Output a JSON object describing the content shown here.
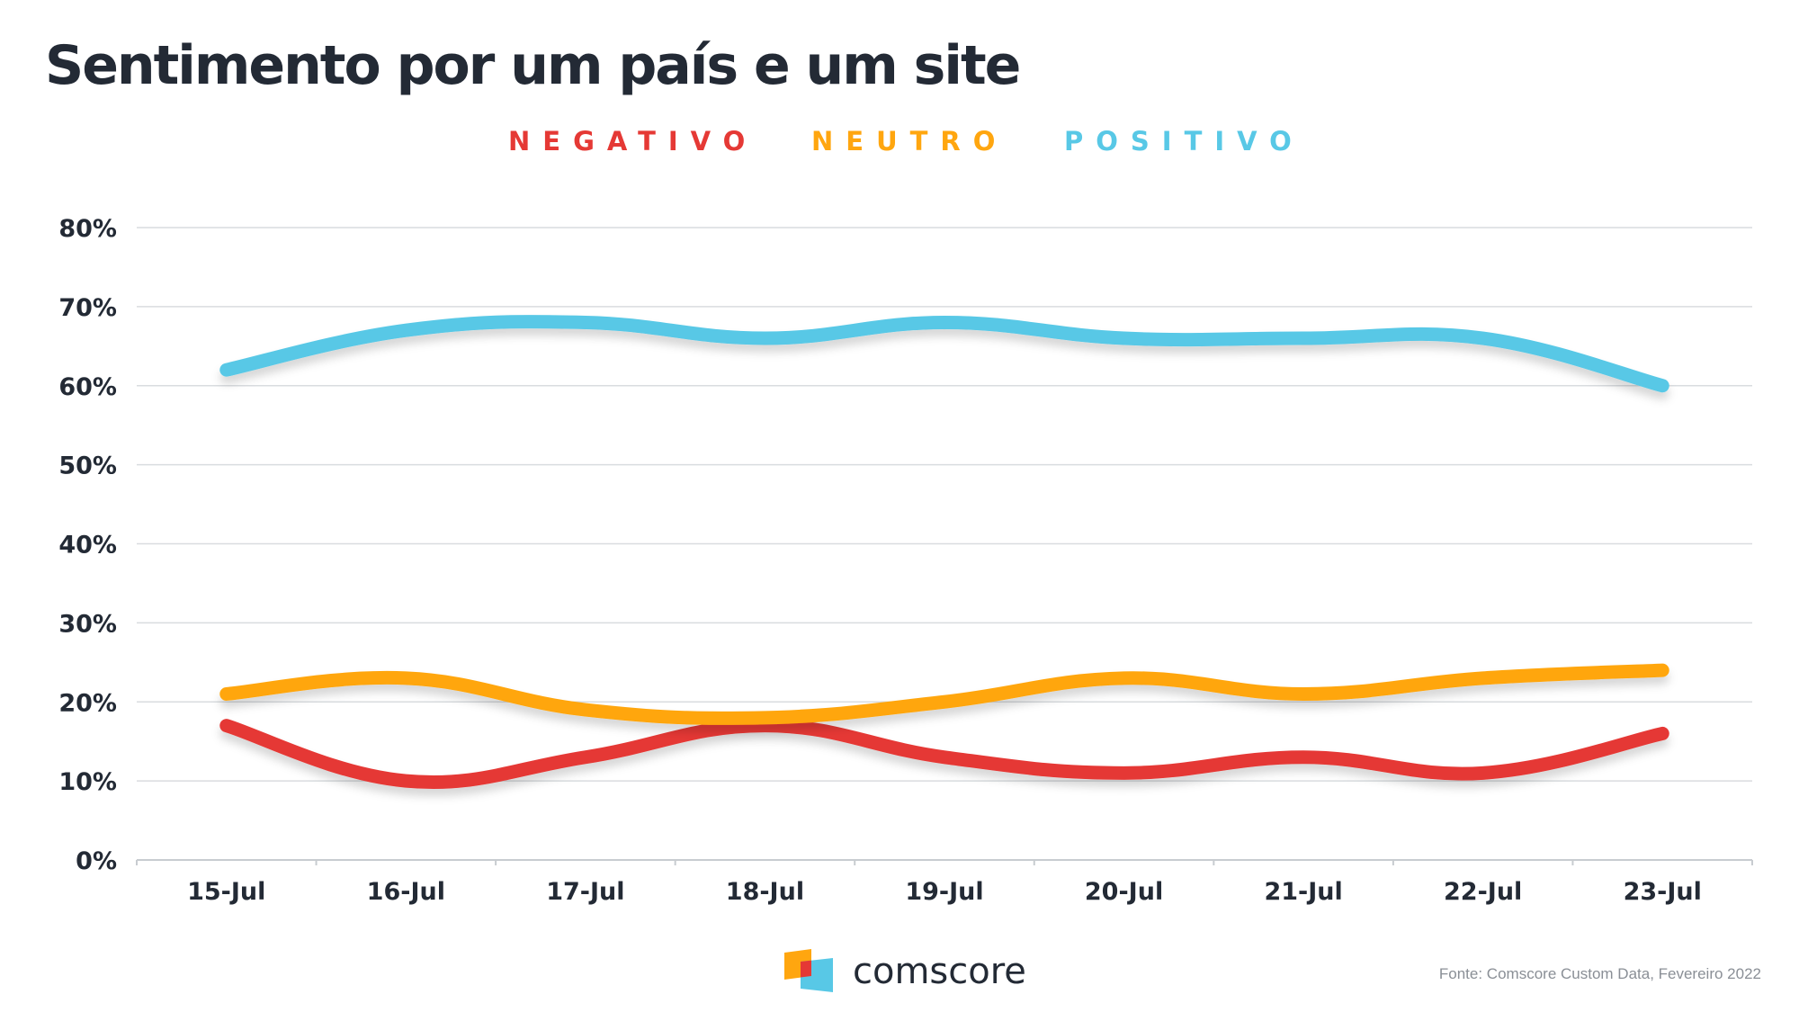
{
  "title": "Sentimento por um país e um site",
  "source": "Fonte: Comscore Custom Data, Fevereiro 2022",
  "logo": {
    "text": "comscore",
    "icon": "comscore-logo-icon"
  },
  "colors": {
    "negativo": "#e53935",
    "neutro": "#ffa60f",
    "positivo": "#58c8e6",
    "text": "#232a35",
    "grid": "#d9dcdf"
  },
  "chart_data": {
    "type": "line",
    "title": "Sentimento por um país e um site",
    "xlabel": "",
    "ylabel": "",
    "categories": [
      "15-Jul",
      "16-Jul",
      "17-Jul",
      "18-Jul",
      "19-Jul",
      "20-Jul",
      "21-Jul",
      "22-Jul",
      "23-Jul"
    ],
    "ylim": [
      0,
      80
    ],
    "yticks": [
      "0%",
      "10%",
      "20%",
      "30%",
      "40%",
      "50%",
      "60%",
      "70%",
      "80%"
    ],
    "grid": true,
    "legend_position": "top-center",
    "series": [
      {
        "name": "NEGATIVO",
        "color": "#e53935",
        "values": [
          17,
          10,
          13,
          17,
          13,
          11,
          13,
          11,
          16
        ]
      },
      {
        "name": "NEUTRO",
        "color": "#ffa60f",
        "values": [
          21,
          23,
          19,
          18,
          20,
          23,
          21,
          23,
          24
        ]
      },
      {
        "name": "POSITIVO",
        "color": "#58c8e6",
        "values": [
          62,
          67,
          68,
          66,
          68,
          66,
          66,
          66,
          60
        ]
      }
    ]
  }
}
